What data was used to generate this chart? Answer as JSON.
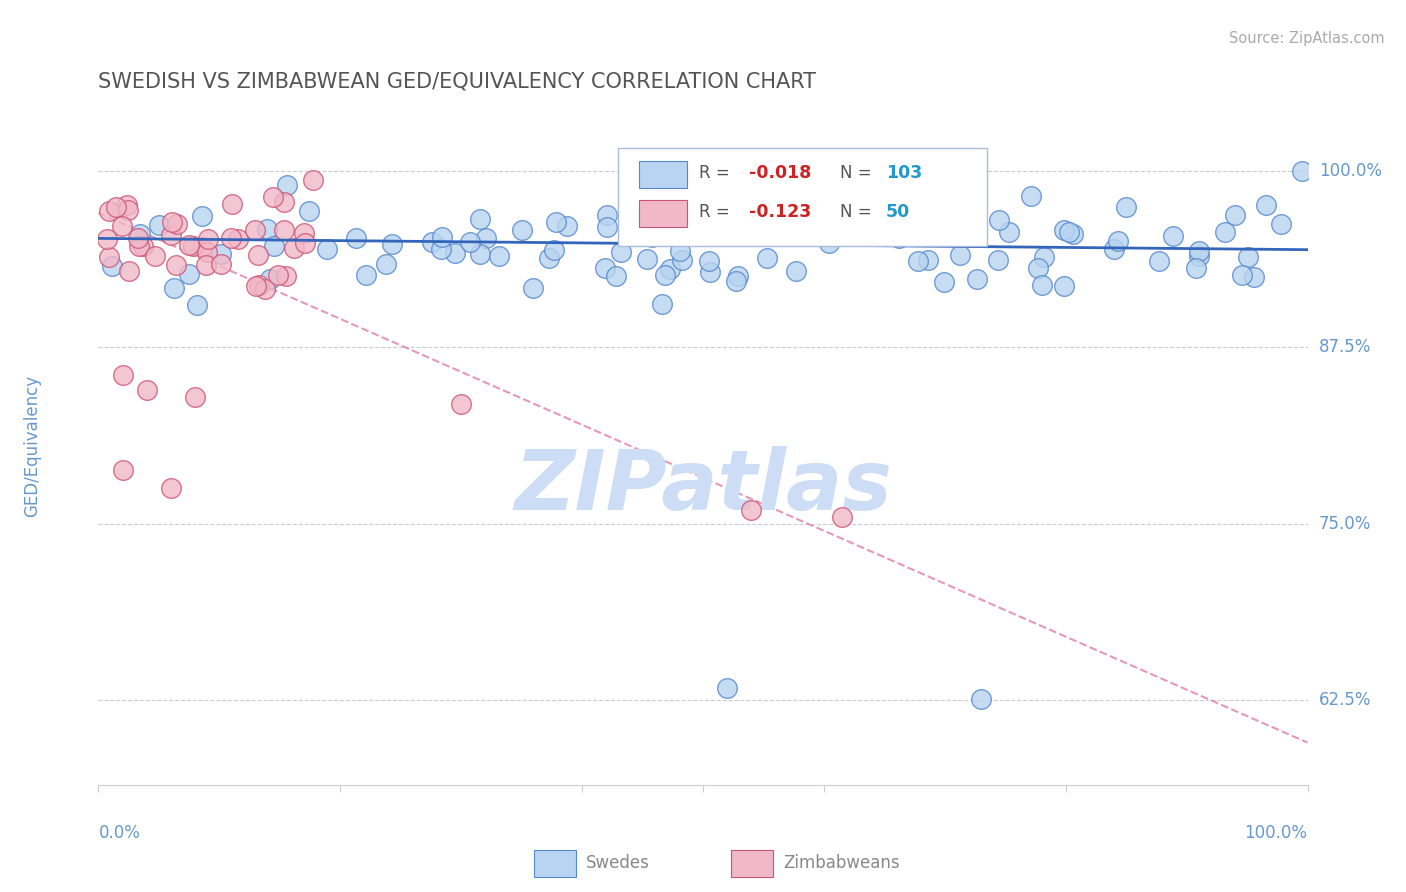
{
  "title": "SWEDISH VS ZIMBABWEAN GED/EQUIVALENCY CORRELATION CHART",
  "source_text": "Source: ZipAtlas.com",
  "ylabel": "GED/Equivalency",
  "yticks": [
    0.625,
    0.75,
    0.875,
    1.0
  ],
  "ytick_labels": [
    "62.5%",
    "75.0%",
    "87.5%",
    "100.0%"
  ],
  "xlim": [
    0.0,
    1.0
  ],
  "ylim": [
    0.565,
    1.045
  ],
  "swedish_R": -0.018,
  "swedish_N": 103,
  "zimbabwean_R": -0.123,
  "zimbabwean_N": 50,
  "swedish_color": "#b8d4f0",
  "swedish_edge_color": "#5588cc",
  "zimbabwean_color": "#f0b8c8",
  "zimbabwean_edge_color": "#cc5577",
  "swedish_line_color": "#3366bb",
  "zimbabwean_line_color": "#dd7799",
  "swedish_line_y0": 0.952,
  "swedish_line_y1": 0.944,
  "zimbabwean_line_y0": 0.97,
  "zimbabwean_line_y1": 0.595,
  "watermark_color": "#ccddf5",
  "grid_color": "#cccccc",
  "title_color": "#555555",
  "axis_label_color": "#6699cc",
  "legend_text_color_R": "#cc2222",
  "legend_text_color_N": "#2299cc",
  "source_color": "#aaaaaa",
  "bottom_label_color": "#888888"
}
